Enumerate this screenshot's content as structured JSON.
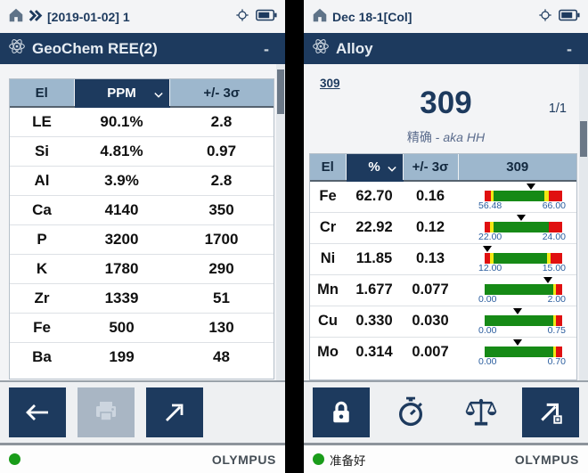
{
  "colors": {
    "navy": "#1d3a5e",
    "bar_red": "#e01010",
    "bar_yellow": "#f2e713",
    "bar_green": "#168a16",
    "range_label_blue": "#2a5d9e",
    "ready_green": "#1a9c1a"
  },
  "left_screen": {
    "status_bar": {
      "breadcrumb": "[2019-01-02] 1"
    },
    "title_bar": {
      "app_title": "GeoChem REE(2)",
      "minimize_label": "-"
    },
    "table": {
      "columns": [
        {
          "label": "El"
        },
        {
          "label": "PPM",
          "selected": true
        },
        {
          "label": "+/- 3σ"
        }
      ],
      "rows": [
        {
          "el": "LE",
          "value": "90.1%",
          "sigma": "2.8"
        },
        {
          "el": "Si",
          "value": "4.81%",
          "sigma": "0.97"
        },
        {
          "el": "Al",
          "value": "3.9%",
          "sigma": "2.8"
        },
        {
          "el": "Ca",
          "value": "4140",
          "sigma": "350"
        },
        {
          "el": "P",
          "value": "3200",
          "sigma": "1700"
        },
        {
          "el": "K",
          "value": "1780",
          "sigma": "290"
        },
        {
          "el": "Zr",
          "value": "1339",
          "sigma": "51"
        },
        {
          "el": "Fe",
          "value": "500",
          "sigma": "130"
        },
        {
          "el": "Ba",
          "value": "199",
          "sigma": "48"
        }
      ]
    },
    "footer": {
      "brand": "OLYMPUS"
    }
  },
  "right_screen": {
    "status_bar": {
      "breadcrumb": "Dec 18-1[Col]"
    },
    "title_bar": {
      "app_title": "Alloy",
      "minimize_label": "-"
    },
    "result": {
      "grade_link": "309",
      "grade_match": "309",
      "page_indicator": "1/1",
      "mode_label": "精确",
      "separator": " - ",
      "grade_alias": "aka HH"
    },
    "table": {
      "columns": [
        {
          "label": "El"
        },
        {
          "label": "%",
          "selected": true
        },
        {
          "label": "+/- 3σ"
        },
        {
          "label": "309"
        }
      ],
      "rows": [
        {
          "el": "Fe",
          "value": "62.70",
          "sigma": "0.16",
          "bar": {
            "lo": "56.48",
            "hi": "66.00",
            "marker_pct": 60,
            "segments": [
              {
                "color": "bar_red",
                "pct": 8
              },
              {
                "color": "bar_yellow",
                "pct": 3
              },
              {
                "color": "bar_green",
                "pct": 66
              },
              {
                "color": "bar_yellow",
                "pct": 6
              },
              {
                "color": "bar_red",
                "pct": 17
              }
            ]
          }
        },
        {
          "el": "Cr",
          "value": "22.92",
          "sigma": "0.12",
          "bar": {
            "lo": "22.00",
            "hi": "24.00",
            "marker_pct": 47,
            "segments": [
              {
                "color": "bar_red",
                "pct": 7
              },
              {
                "color": "bar_yellow",
                "pct": 4
              },
              {
                "color": "bar_green",
                "pct": 72
              },
              {
                "color": "bar_red",
                "pct": 17
              }
            ]
          }
        },
        {
          "el": "Ni",
          "value": "11.85",
          "sigma": "0.13",
          "bar": {
            "lo": "12.00",
            "hi": "15.00",
            "marker_pct": 4,
            "segments": [
              {
                "color": "bar_red",
                "pct": 7
              },
              {
                "color": "bar_yellow",
                "pct": 4
              },
              {
                "color": "bar_green",
                "pct": 70
              },
              {
                "color": "bar_yellow",
                "pct": 4
              },
              {
                "color": "bar_red",
                "pct": 15
              }
            ]
          }
        },
        {
          "el": "Mn",
          "value": "1.677",
          "sigma": "0.077",
          "bar": {
            "lo": "0.00",
            "hi": "2.00",
            "marker_pct": 82,
            "segments": [
              {
                "color": "bar_green",
                "pct": 88
              },
              {
                "color": "bar_yellow",
                "pct": 4
              },
              {
                "color": "bar_red",
                "pct": 8
              }
            ]
          }
        },
        {
          "el": "Cu",
          "value": "0.330",
          "sigma": "0.030",
          "bar": {
            "lo": "0.00",
            "hi": "0.75",
            "marker_pct": 42,
            "segments": [
              {
                "color": "bar_green",
                "pct": 88
              },
              {
                "color": "bar_yellow",
                "pct": 4
              },
              {
                "color": "bar_red",
                "pct": 8
              }
            ]
          }
        },
        {
          "el": "Mo",
          "value": "0.314",
          "sigma": "0.007",
          "bar": {
            "lo": "0.00",
            "hi": "0.70",
            "marker_pct": 43,
            "segments": [
              {
                "color": "bar_green",
                "pct": 88
              },
              {
                "color": "bar_yellow",
                "pct": 4
              },
              {
                "color": "bar_red",
                "pct": 8
              }
            ]
          }
        }
      ]
    },
    "footer": {
      "status_text": "准备好",
      "brand": "OLYMPUS"
    }
  }
}
